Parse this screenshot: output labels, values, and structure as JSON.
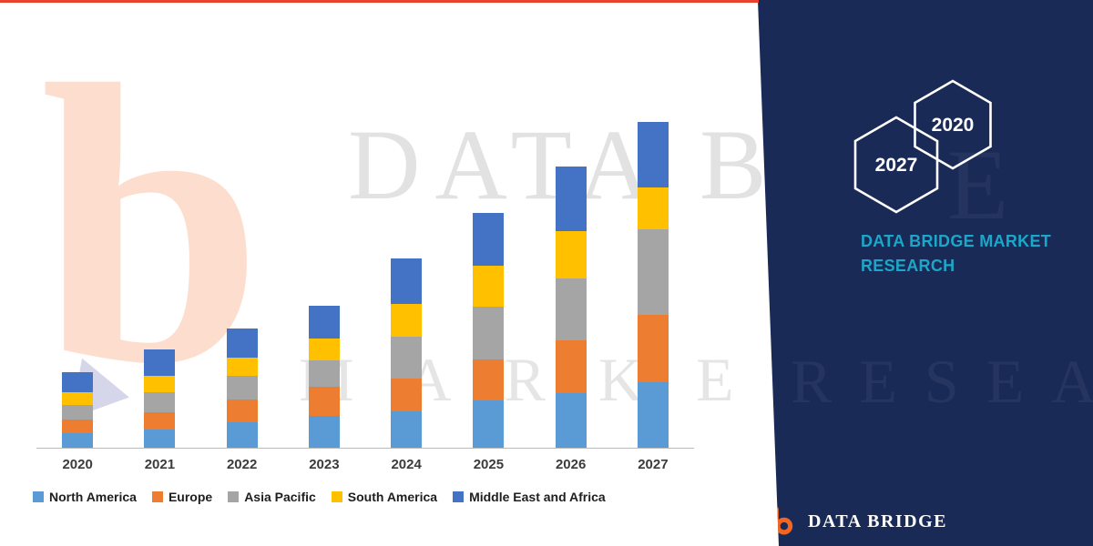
{
  "watermark": {
    "line1": "DATA BRIDGE",
    "line2_left": "MARKET",
    "line2_right": "RESEARCH",
    "line1_overflow": "E",
    "logo_glyph": "b"
  },
  "panel": {
    "title": "DATA BRIDGE MARKET RESEARCH",
    "hexagons": [
      {
        "label": "2027"
      },
      {
        "label": "2020"
      }
    ],
    "logo_text": "DATA BRIDGE",
    "colors": {
      "navy": "#1A2A56",
      "teal": "#1BA7C9",
      "hexagon_outline": "#FFFFFF",
      "accent_red": "#E8432E",
      "logo_orange": "#F26522",
      "logo_blue": "#2E3192"
    }
  },
  "chart_data": {
    "type": "bar",
    "stacked": true,
    "title": "",
    "categories": [
      "2020",
      "2021",
      "2022",
      "2023",
      "2024",
      "2025",
      "2026",
      "2027"
    ],
    "series": [
      {
        "name": "North America",
        "color": "#5B9BD5",
        "values": [
          16,
          20,
          28,
          35,
          40,
          52,
          60,
          72
        ]
      },
      {
        "name": "Europe",
        "color": "#ED7D31",
        "values": [
          15,
          19,
          25,
          32,
          36,
          45,
          58,
          74
        ]
      },
      {
        "name": "Asia Pacific",
        "color": "#A5A5A5",
        "values": [
          16,
          22,
          26,
          29,
          46,
          58,
          68,
          94
        ]
      },
      {
        "name": "South America",
        "color": "#FFC000",
        "values": [
          14,
          18,
          20,
          24,
          36,
          45,
          52,
          46
        ]
      },
      {
        "name": "Middle East and Africa",
        "color": "#4472C4",
        "values": [
          22,
          29,
          32,
          36,
          50,
          58,
          71,
          72
        ]
      }
    ],
    "ylim": [
      0,
      400
    ],
    "grid": false,
    "legend_position": "bottom"
  }
}
